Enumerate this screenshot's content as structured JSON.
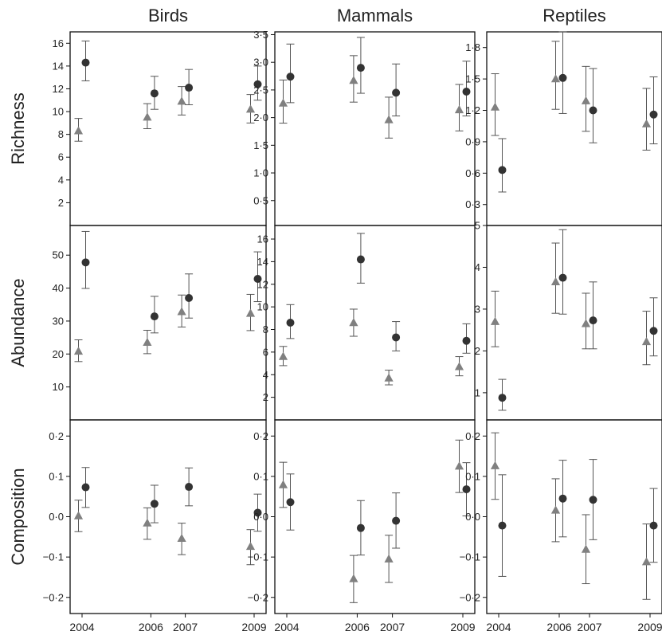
{
  "figure": {
    "column_titles": [
      "Birds",
      "Mammals",
      "Reptiles"
    ],
    "row_titles": [
      "Richness",
      "Abundance",
      "Composition"
    ],
    "x_ticks": [
      2004,
      2006,
      2007,
      2009
    ],
    "x_tick_labels": [
      "2004",
      "2006",
      "2007",
      "2009"
    ]
  },
  "chart_data": [
    {
      "type": "scatter",
      "group": "Birds",
      "metric": "Richness",
      "ylim": [
        0,
        17
      ],
      "yticks": [
        2,
        4,
        6,
        8,
        10,
        12,
        14,
        16
      ],
      "ytick_labels": [
        "2",
        "4",
        "6",
        "8",
        "10",
        "12",
        "14",
        "16"
      ],
      "x": [
        2004,
        2006,
        2007,
        2009
      ],
      "series": [
        {
          "marker": "triangle",
          "color": "#808080",
          "values": [
            8.3,
            9.5,
            10.9,
            10.2
          ],
          "lower": [
            7.4,
            8.5,
            9.7,
            9.0
          ],
          "upper": [
            9.4,
            10.7,
            12.2,
            11.5
          ]
        },
        {
          "marker": "circle",
          "color": "#333333",
          "values": [
            14.3,
            11.6,
            12.1,
            12.4
          ],
          "lower": [
            12.7,
            10.2,
            10.6,
            11.0
          ],
          "upper": [
            16.2,
            13.1,
            13.7,
            14.0
          ]
        }
      ]
    },
    {
      "type": "scatter",
      "group": "Mammals",
      "metric": "Richness",
      "ylim": [
        0.05,
        3.55
      ],
      "yticks": [
        0.5,
        1.0,
        1.5,
        2.0,
        2.5,
        3.0,
        3.5
      ],
      "ytick_labels": [
        "0·5",
        "1·0",
        "1·5",
        "2·0",
        "2·5",
        "3·0",
        "3·5"
      ],
      "x": [
        2004,
        2006,
        2007,
        2009
      ],
      "series": [
        {
          "marker": "triangle",
          "color": "#808080",
          "values": [
            2.26,
            2.67,
            1.96,
            2.14
          ],
          "lower": [
            1.9,
            2.28,
            1.63,
            1.76
          ],
          "upper": [
            2.68,
            3.12,
            2.37,
            2.6
          ]
        },
        {
          "marker": "circle",
          "color": "#333333",
          "values": [
            2.74,
            2.9,
            2.45,
            2.47
          ],
          "lower": [
            2.27,
            2.44,
            2.03,
            2.03
          ],
          "upper": [
            3.33,
            3.45,
            2.97,
            3.02
          ]
        }
      ]
    },
    {
      "type": "scatter",
      "group": "Reptiles",
      "metric": "Richness",
      "ylim": [
        0.1,
        1.95
      ],
      "yticks": [
        0.3,
        0.6,
        0.9,
        1.2,
        1.5,
        1.8
      ],
      "ytick_labels": [
        "0·3",
        "0·6",
        "0·9",
        "1·2",
        "1·5",
        "1·8"
      ],
      "x": [
        2004,
        2006,
        2007,
        2009
      ],
      "series": [
        {
          "marker": "triangle",
          "color": "#808080",
          "values": [
            1.23,
            1.5,
            1.29,
            1.07
          ],
          "lower": [
            0.96,
            1.21,
            1.0,
            0.82
          ],
          "upper": [
            1.55,
            1.86,
            1.62,
            1.41
          ]
        },
        {
          "marker": "circle",
          "color": "#333333",
          "values": [
            0.63,
            1.51,
            1.2,
            1.16
          ],
          "lower": [
            0.42,
            1.17,
            0.89,
            0.88
          ],
          "upper": [
            0.93,
            1.95,
            1.6,
            1.52
          ]
        }
      ]
    },
    {
      "type": "scatter",
      "group": "Birds",
      "metric": "Abundance",
      "ylim": [
        0,
        59
      ],
      "yticks": [
        10,
        20,
        30,
        40,
        50
      ],
      "ytick_labels": [
        "10",
        "20",
        "30",
        "40",
        "50"
      ],
      "x": [
        2004,
        2006,
        2007,
        2009
      ],
      "series": [
        {
          "marker": "triangle",
          "color": "#808080",
          "values": [
            20.8,
            23.5,
            32.8,
            32.3
          ],
          "lower": [
            17.7,
            20.1,
            28.2,
            27.1
          ],
          "upper": [
            24.3,
            27.2,
            37.9,
            38.1
          ]
        },
        {
          "marker": "circle",
          "color": "#333333",
          "values": [
            47.8,
            31.4,
            37.0,
            42.8
          ],
          "lower": [
            39.9,
            26.4,
            30.9,
            35.9
          ],
          "upper": [
            57.2,
            37.5,
            44.3,
            51.0
          ]
        }
      ]
    },
    {
      "type": "scatter",
      "group": "Mammals",
      "metric": "Abundance",
      "ylim": [
        0,
        17.2
      ],
      "yticks": [
        2,
        4,
        6,
        8,
        10,
        12,
        14,
        16
      ],
      "ytick_labels": [
        "2",
        "4",
        "6",
        "8",
        "10",
        "12",
        "14",
        "16"
      ],
      "x": [
        2004,
        2006,
        2007,
        2009
      ],
      "series": [
        {
          "marker": "triangle",
          "color": "#808080",
          "values": [
            5.6,
            8.6,
            3.7,
            4.7
          ],
          "lower": [
            4.8,
            7.4,
            3.1,
            3.9
          ],
          "upper": [
            6.5,
            9.8,
            4.4,
            5.6
          ]
        },
        {
          "marker": "circle",
          "color": "#333333",
          "values": [
            8.6,
            14.2,
            7.3,
            7.0
          ],
          "lower": [
            7.2,
            12.1,
            6.1,
            5.9
          ],
          "upper": [
            10.2,
            16.5,
            8.7,
            8.5
          ]
        }
      ]
    },
    {
      "type": "scatter",
      "group": "Reptiles",
      "metric": "Abundance",
      "ylim": [
        0.35,
        5.0
      ],
      "yticks": [
        1,
        2,
        3,
        4,
        5
      ],
      "ytick_labels": [
        "1",
        "2",
        "3",
        "4",
        "5"
      ],
      "x": [
        2004,
        2006,
        2007,
        2009
      ],
      "series": [
        {
          "marker": "triangle",
          "color": "#808080",
          "values": [
            2.7,
            3.65,
            2.65,
            2.22
          ],
          "lower": [
            2.1,
            2.9,
            2.05,
            1.67
          ],
          "upper": [
            3.43,
            4.58,
            3.38,
            2.95
          ]
        },
        {
          "marker": "circle",
          "color": "#333333",
          "values": [
            0.88,
            3.75,
            2.73,
            2.48
          ],
          "lower": [
            0.58,
            2.88,
            2.05,
            1.88
          ],
          "upper": [
            1.32,
            4.9,
            3.65,
            3.27
          ]
        }
      ]
    },
    {
      "type": "scatter",
      "group": "Birds",
      "metric": "Composition",
      "ylim": [
        -0.24,
        0.24
      ],
      "yticks": [
        -0.2,
        -0.1,
        0.0,
        0.1,
        0.2
      ],
      "ytick_labels": [
        "−0·2",
        "−0·1",
        "0·0",
        "0·1",
        "0·2"
      ],
      "x": [
        2004,
        2006,
        2007,
        2009
      ],
      "series": [
        {
          "marker": "triangle",
          "color": "#808080",
          "values": [
            0.002,
            -0.016,
            -0.054,
            -0.074
          ],
          "lower": [
            -0.037,
            -0.056,
            -0.094,
            -0.119
          ],
          "upper": [
            0.041,
            0.022,
            -0.016,
            -0.032
          ]
        },
        {
          "marker": "circle",
          "color": "#333333",
          "values": [
            0.073,
            0.032,
            0.074,
            0.01
          ],
          "lower": [
            0.023,
            -0.015,
            0.027,
            -0.036
          ],
          "upper": [
            0.122,
            0.078,
            0.121,
            0.056
          ]
        }
      ]
    },
    {
      "type": "scatter",
      "group": "Mammals",
      "metric": "Composition",
      "ylim": [
        -0.24,
        0.24
      ],
      "yticks": [
        -0.2,
        -0.1,
        0.0,
        0.1,
        0.2
      ],
      "ytick_labels": [
        "−0·2",
        "−0·1",
        "0·0",
        "0·1",
        "0·2"
      ],
      "x": [
        2004,
        2006,
        2007,
        2009
      ],
      "series": [
        {
          "marker": "triangle",
          "color": "#808080",
          "values": [
            0.079,
            -0.154,
            -0.105,
            0.125
          ],
          "lower": [
            0.023,
            -0.213,
            -0.163,
            0.06
          ],
          "upper": [
            0.135,
            -0.096,
            -0.046,
            0.19
          ]
        },
        {
          "marker": "circle",
          "color": "#333333",
          "values": [
            0.036,
            -0.028,
            -0.01,
            0.068
          ],
          "lower": [
            -0.033,
            -0.095,
            -0.078,
            0.002
          ],
          "upper": [
            0.106,
            0.04,
            0.059,
            0.134
          ]
        }
      ]
    },
    {
      "type": "scatter",
      "group": "Reptiles",
      "metric": "Composition",
      "ylim": [
        -0.24,
        0.24
      ],
      "yticks": [
        -0.2,
        -0.1,
        0.0,
        0.1,
        0.2
      ],
      "ytick_labels": [
        "−0·2",
        "−0·1",
        "0·0",
        "0·1",
        "0·2"
      ],
      "x": [
        2004,
        2006,
        2007,
        2009
      ],
      "series": [
        {
          "marker": "triangle",
          "color": "#808080",
          "values": [
            0.126,
            0.016,
            -0.081,
            -0.112
          ],
          "lower": [
            0.043,
            -0.062,
            -0.166,
            -0.205
          ],
          "upper": [
            0.208,
            0.094,
            0.005,
            -0.018
          ]
        },
        {
          "marker": "circle",
          "color": "#333333",
          "values": [
            -0.022,
            0.045,
            0.042,
            -0.022
          ],
          "lower": [
            -0.148,
            -0.05,
            -0.057,
            -0.113
          ],
          "upper": [
            0.104,
            0.14,
            0.142,
            0.07
          ]
        }
      ]
    }
  ]
}
